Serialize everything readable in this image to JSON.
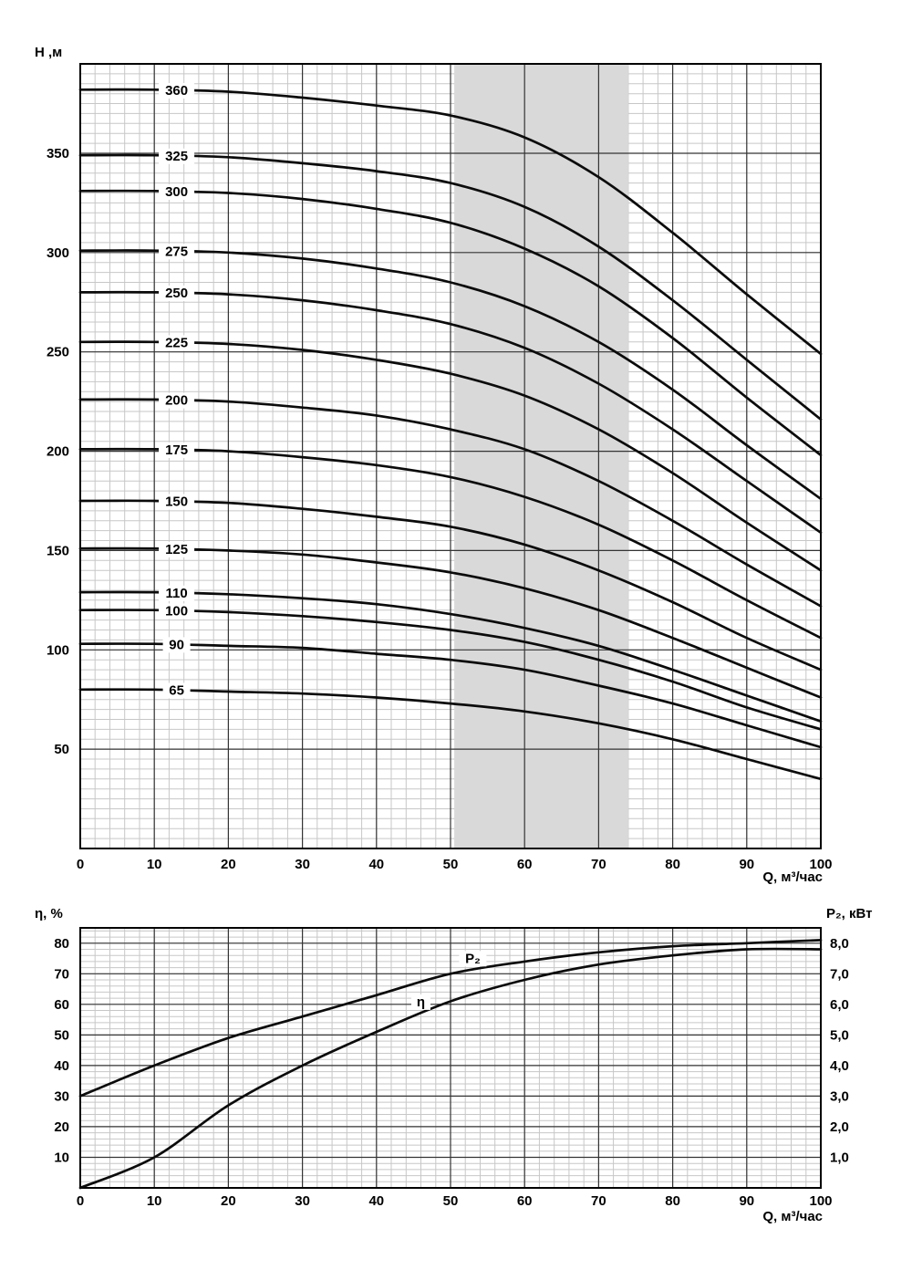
{
  "style": {
    "background": "#ffffff",
    "curve_color": "#0b0b0b",
    "minor_grid_color": "#c7c7c7",
    "major_grid_color": "#343434",
    "band_color": "#d9d9d9",
    "text_color": "#000000"
  },
  "chart_data": [
    {
      "id": "head-flow-chart",
      "type": "line",
      "title": "",
      "xlabel": "Q, м³/час",
      "ylabel": "Н ,м",
      "xlim": [
        0,
        100
      ],
      "ylim": [
        0,
        395
      ],
      "x_ticks": [
        0,
        10,
        20,
        30,
        40,
        50,
        60,
        70,
        80,
        90,
        100
      ],
      "y_ticks": [
        50,
        100,
        150,
        200,
        250,
        300,
        350
      ],
      "x_minor_step": 2,
      "y_minor_step": 5,
      "grid": true,
      "legend": "inline-curve-labels",
      "band": {
        "x0": 50.5,
        "x1": 74
      },
      "label_q": 13,
      "x": [
        0,
        10,
        20,
        30,
        40,
        50,
        60,
        70,
        80,
        90,
        100
      ],
      "series": [
        {
          "name": "360",
          "values": [
            382,
            382,
            381,
            378,
            374,
            369,
            358,
            338,
            310,
            279,
            249
          ]
        },
        {
          "name": "325",
          "values": [
            349,
            349,
            348,
            345,
            341,
            335,
            323,
            303,
            276,
            246,
            216
          ]
        },
        {
          "name": "300",
          "values": [
            331,
            331,
            330,
            327,
            322,
            315,
            302,
            283,
            257,
            227,
            198
          ]
        },
        {
          "name": "275",
          "values": [
            301,
            301,
            300,
            297,
            292,
            285,
            273,
            255,
            231,
            203,
            176
          ]
        },
        {
          "name": "250",
          "values": [
            280,
            280,
            279,
            276,
            271,
            264,
            252,
            234,
            211,
            185,
            159
          ]
        },
        {
          "name": "225",
          "values": [
            255,
            255,
            254,
            251,
            246,
            239,
            228,
            211,
            189,
            164,
            140
          ]
        },
        {
          "name": "200",
          "values": [
            226,
            226,
            225,
            222,
            218,
            211,
            201,
            185,
            165,
            143,
            122
          ]
        },
        {
          "name": "175",
          "values": [
            201,
            201,
            200,
            197,
            193,
            187,
            177,
            163,
            145,
            125,
            106
          ]
        },
        {
          "name": "150",
          "values": [
            175,
            175,
            174,
            171,
            167,
            162,
            153,
            140,
            124,
            106,
            90
          ]
        },
        {
          "name": "125",
          "values": [
            151,
            151,
            150,
            148,
            144,
            139,
            131,
            120,
            106,
            91,
            76
          ]
        },
        {
          "name": "110",
          "values": [
            129,
            129,
            128,
            126,
            123,
            118,
            111,
            102,
            90,
            77,
            64
          ]
        },
        {
          "name": "100",
          "values": [
            120,
            120,
            119,
            117,
            114,
            110,
            104,
            95,
            84,
            71,
            60
          ]
        },
        {
          "name": "90",
          "values": [
            103,
            103,
            102,
            101,
            98,
            95,
            90,
            82,
            73,
            62,
            51
          ]
        },
        {
          "name": "65",
          "values": [
            80,
            80,
            79,
            78,
            76,
            73,
            69,
            63,
            55,
            45,
            35
          ]
        }
      ]
    },
    {
      "id": "efficiency-power-chart",
      "type": "line",
      "title": "",
      "xlabel": "Q, м³/час",
      "ylabel": "η, %",
      "ylabel_right": "P₂, кВт",
      "xlim": [
        0,
        100
      ],
      "ylim": [
        0,
        85
      ],
      "ylim_right": [
        0,
        8.5
      ],
      "x_ticks": [
        0,
        10,
        20,
        30,
        40,
        50,
        60,
        70,
        80,
        90,
        100
      ],
      "y_ticks": [
        10,
        20,
        30,
        40,
        50,
        60,
        70,
        80
      ],
      "y_ticks_right": [
        {
          "label": "1,0",
          "value": 1
        },
        {
          "label": "2,0",
          "value": 2
        },
        {
          "label": "3,0",
          "value": 3
        },
        {
          "label": "4,0",
          "value": 4
        },
        {
          "label": "5,0",
          "value": 5
        },
        {
          "label": "6,0",
          "value": 6
        },
        {
          "label": "7,0",
          "value": 7
        },
        {
          "label": "8,0",
          "value": 8
        }
      ],
      "x_minor_step": 2,
      "y_minor_step": 2,
      "grid": true,
      "x": [
        0,
        10,
        20,
        30,
        40,
        50,
        60,
        70,
        80,
        90,
        100
      ],
      "series": [
        {
          "name": "η",
          "axis": "left",
          "label_q": 46,
          "label_dy": -8,
          "values": [
            0,
            10,
            27,
            40,
            51,
            61,
            68,
            73,
            76,
            78,
            78
          ]
        },
        {
          "name": "P₂",
          "axis": "right",
          "label_q": 53,
          "label_dy": -8,
          "values": [
            3.0,
            4.0,
            4.9,
            5.6,
            6.3,
            7.0,
            7.4,
            7.7,
            7.9,
            8.0,
            8.1
          ]
        }
      ]
    }
  ]
}
